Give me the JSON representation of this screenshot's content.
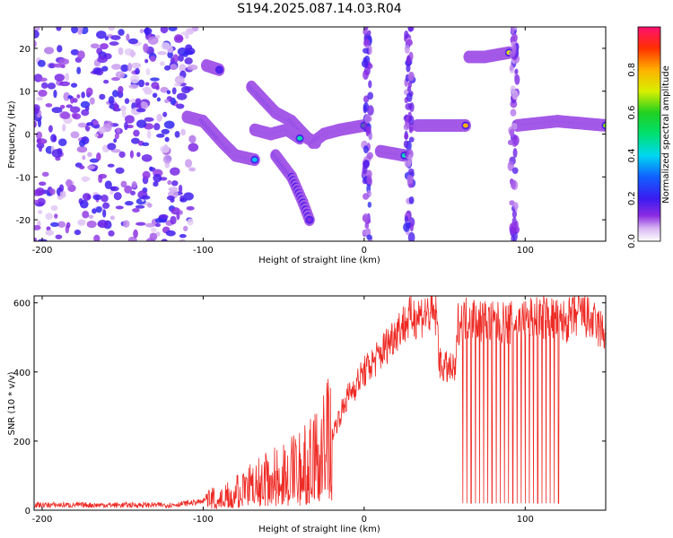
{
  "title": "S194.2025.087.14.03.R04",
  "chart_data": [
    {
      "type": "heatmap",
      "xlabel": "Height of straight line (km)",
      "ylabel": "Frequency (Hz)",
      "xlim": [
        -205,
        150
      ],
      "ylim": [
        -25,
        25
      ],
      "xticks": [
        -200,
        -100,
        0,
        100
      ],
      "yticks": [
        -20,
        -10,
        0,
        10,
        20
      ],
      "colorbar": {
        "label": "Normalized spectral amplitude",
        "range": [
          0,
          1
        ],
        "ticks": [
          "0.0",
          "0.2",
          "0.4",
          "0.6",
          "0.8"
        ],
        "tick_values": [
          0,
          0.2,
          0.4,
          0.6,
          0.8
        ]
      },
      "features": [
        {
          "kind": "noise-field",
          "x_range": [
            -205,
            -105
          ],
          "y_range": [
            -25,
            25
          ],
          "amplitude": 0.12
        },
        {
          "kind": "track",
          "points": [
            [
              -110,
              4
            ],
            [
              -100,
              3
            ],
            [
              -88,
              -2
            ],
            [
              -80,
              -5
            ],
            [
              -68,
              -6
            ]
          ],
          "amplitude": 0.45
        },
        {
          "kind": "track",
          "points": [
            [
              -98,
              16
            ],
            [
              -90,
              15
            ]
          ],
          "amplitude": 0.3
        },
        {
          "kind": "track",
          "points": [
            [
              -70,
              11
            ],
            [
              -55,
              5
            ],
            [
              -45,
              3
            ],
            [
              -35,
              -1
            ],
            [
              -30,
              -2
            ]
          ],
          "amplitude": 0.45
        },
        {
          "kind": "track",
          "points": [
            [
              -68,
              1
            ],
            [
              -58,
              0
            ],
            [
              -48,
              1
            ],
            [
              -40,
              -1
            ]
          ],
          "amplitude": 0.5
        },
        {
          "kind": "track",
          "points": [
            [
              -55,
              -5
            ],
            [
              -45,
              -10
            ],
            [
              -38,
              -16
            ],
            [
              -34,
              -20
            ]
          ],
          "amplitude": 0.2
        },
        {
          "kind": "track",
          "points": [
            [
              -32,
              -2
            ],
            [
              -25,
              0
            ],
            [
              -15,
              1
            ],
            [
              0,
              2
            ]
          ],
          "amplitude": 0.7
        },
        {
          "kind": "track",
          "points": [
            [
              10,
              -4
            ],
            [
              25,
              -5
            ]
          ],
          "amplitude": 0.55
        },
        {
          "kind": "track",
          "points": [
            [
              33,
              2
            ],
            [
              63,
              2
            ]
          ],
          "amplitude": 0.85
        },
        {
          "kind": "track",
          "points": [
            [
              65,
              18
            ],
            [
              75,
              18
            ],
            [
              90,
              19
            ]
          ],
          "amplitude": 0.75
        },
        {
          "kind": "track",
          "points": [
            [
              95,
              2
            ],
            [
              120,
              3
            ],
            [
              150,
              2
            ]
          ],
          "amplitude": 0.85
        },
        {
          "kind": "vertical-band",
          "x": 2,
          "y_range": [
            -25,
            25
          ],
          "amplitude": 0.15
        },
        {
          "kind": "vertical-band",
          "x": 28,
          "y_range": [
            -25,
            25
          ],
          "amplitude": 0.15
        },
        {
          "kind": "vertical-band",
          "x": 93,
          "y_range": [
            -25,
            25
          ],
          "amplitude": 0.12
        }
      ]
    },
    {
      "type": "line",
      "xlabel": "Height of straight line (km)",
      "ylabel": "SNR (10 * v/v)",
      "xlim": [
        -205,
        150
      ],
      "ylim": [
        0,
        620
      ],
      "xticks": [
        -200,
        -100,
        0,
        100
      ],
      "yticks": [
        0,
        200,
        400,
        600
      ],
      "color": "#ee2a24",
      "series": [
        {
          "envelope": [
            [
              -205,
              15
            ],
            [
              -120,
              15
            ],
            [
              -100,
              25
            ],
            [
              -80,
              60
            ],
            [
              -60,
              90
            ],
            [
              -40,
              120
            ],
            [
              -30,
              150
            ],
            [
              -20,
              220
            ],
            [
              -10,
              330
            ],
            [
              0,
              400
            ],
            [
              10,
              450
            ],
            [
              20,
              520
            ],
            [
              30,
              560
            ],
            [
              40,
              570
            ],
            [
              45,
              560
            ],
            [
              47,
              420
            ],
            [
              52,
              410
            ],
            [
              57,
              400
            ],
            [
              58,
              540
            ],
            [
              65,
              560
            ],
            [
              80,
              540
            ],
            [
              90,
              540
            ],
            [
              100,
              550
            ],
            [
              110,
              560
            ],
            [
              120,
              550
            ],
            [
              125,
              545
            ],
            [
              135,
              570
            ],
            [
              150,
              510
            ]
          ],
          "dropouts_x_range": [
            60,
            122
          ],
          "dropouts_count": 24
        }
      ]
    }
  ]
}
